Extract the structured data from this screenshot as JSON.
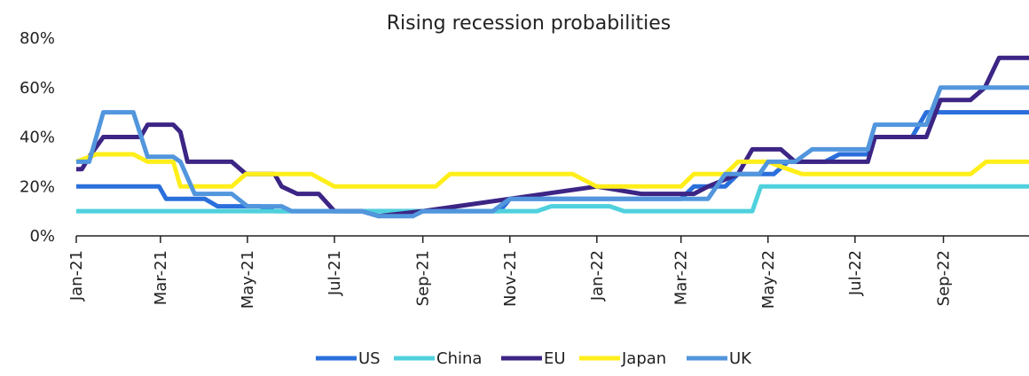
{
  "chart_data": {
    "type": "line",
    "title": "Rising recession probabilities",
    "xlabel": "",
    "ylabel": "",
    "x_ticks": [
      "Jan-21",
      "Mar-21",
      "May-21",
      "Jul-21",
      "Sep-21",
      "Nov-21",
      "Jan-22",
      "Mar-22",
      "May-22",
      "Jul-22",
      "Sep-22"
    ],
    "x_range": [
      "2021-01-01",
      "2022-10-31"
    ],
    "y_ticks": [
      "0%",
      "20%",
      "40%",
      "60%",
      "80%"
    ],
    "ylim": [
      0,
      80
    ],
    "grid": false,
    "legend_position": "bottom",
    "series": [
      {
        "name": "US",
        "color": "#2a6fdb",
        "points": [
          [
            "2021-01-01",
            20
          ],
          [
            "2021-02-28",
            20
          ],
          [
            "2021-03-05",
            15
          ],
          [
            "2021-04-01",
            15
          ],
          [
            "2021-04-10",
            12
          ],
          [
            "2021-05-10",
            12
          ],
          [
            "2021-05-20",
            10
          ],
          [
            "2021-06-01",
            10
          ],
          [
            "2021-10-01",
            10
          ],
          [
            "2021-10-25",
            10
          ],
          [
            "2021-11-01",
            15
          ],
          [
            "2022-03-01",
            15
          ],
          [
            "2022-03-10",
            20
          ],
          [
            "2022-04-01",
            20
          ],
          [
            "2022-04-10",
            25
          ],
          [
            "2022-05-05",
            25
          ],
          [
            "2022-05-15",
            30
          ],
          [
            "2022-06-10",
            30
          ],
          [
            "2022-06-20",
            33
          ],
          [
            "2022-07-10",
            33
          ],
          [
            "2022-07-15",
            40
          ],
          [
            "2022-08-10",
            40
          ],
          [
            "2022-08-20",
            50
          ],
          [
            "2022-10-31",
            50
          ]
        ]
      },
      {
        "name": "China",
        "color": "#4fd1dd",
        "points": [
          [
            "2021-01-01",
            10
          ],
          [
            "2021-11-20",
            10
          ],
          [
            "2021-11-30",
            12
          ],
          [
            "2022-01-10",
            12
          ],
          [
            "2022-01-20",
            10
          ],
          [
            "2022-04-20",
            10
          ],
          [
            "2022-04-26",
            20
          ],
          [
            "2022-10-31",
            20
          ]
        ]
      },
      {
        "name": "EU",
        "color": "#3c2585",
        "points": [
          [
            "2021-01-01",
            27
          ],
          [
            "2021-01-05",
            27
          ],
          [
            "2021-01-10",
            32
          ],
          [
            "2021-01-20",
            40
          ],
          [
            "2021-02-15",
            40
          ],
          [
            "2021-02-20",
            45
          ],
          [
            "2021-03-10",
            45
          ],
          [
            "2021-03-15",
            42
          ],
          [
            "2021-03-20",
            30
          ],
          [
            "2021-04-20",
            30
          ],
          [
            "2021-04-30",
            25
          ],
          [
            "2021-05-20",
            25
          ],
          [
            "2021-05-25",
            20
          ],
          [
            "2021-06-05",
            17
          ],
          [
            "2021-06-20",
            17
          ],
          [
            "2021-07-01",
            10
          ],
          [
            "2021-07-20",
            10
          ],
          [
            "2021-08-01",
            8
          ],
          [
            "2021-09-01",
            10
          ],
          [
            "2021-11-01",
            15
          ],
          [
            "2022-01-01",
            20
          ],
          [
            "2022-02-01",
            17
          ],
          [
            "2022-03-10",
            17
          ],
          [
            "2022-03-20",
            20
          ],
          [
            "2022-04-10",
            25
          ],
          [
            "2022-04-20",
            35
          ],
          [
            "2022-05-10",
            35
          ],
          [
            "2022-05-20",
            30
          ],
          [
            "2022-07-01",
            30
          ],
          [
            "2022-07-10",
            30
          ],
          [
            "2022-07-15",
            40
          ],
          [
            "2022-08-20",
            40
          ],
          [
            "2022-08-30",
            55
          ],
          [
            "2022-09-20",
            55
          ],
          [
            "2022-09-30",
            60
          ],
          [
            "2022-10-10",
            72
          ],
          [
            "2022-10-31",
            72
          ]
        ]
      },
      {
        "name": "Japan",
        "color": "#ffee1a",
        "points": [
          [
            "2021-01-01",
            30
          ],
          [
            "2021-01-15",
            33
          ],
          [
            "2021-02-10",
            33
          ],
          [
            "2021-02-20",
            30
          ],
          [
            "2021-03-10",
            30
          ],
          [
            "2021-03-15",
            20
          ],
          [
            "2021-04-20",
            20
          ],
          [
            "2021-04-30",
            25
          ],
          [
            "2021-06-15",
            25
          ],
          [
            "2021-07-01",
            20
          ],
          [
            "2021-09-10",
            20
          ],
          [
            "2021-09-20",
            25
          ],
          [
            "2021-12-15",
            25
          ],
          [
            "2022-01-01",
            20
          ],
          [
            "2022-02-15",
            20
          ],
          [
            "2022-03-01",
            20
          ],
          [
            "2022-03-10",
            25
          ],
          [
            "2022-04-01",
            25
          ],
          [
            "2022-04-10",
            30
          ],
          [
            "2022-05-01",
            30
          ],
          [
            "2022-05-10",
            28
          ],
          [
            "2022-05-25",
            25
          ],
          [
            "2022-09-20",
            25
          ],
          [
            "2022-10-01",
            30
          ],
          [
            "2022-10-31",
            30
          ]
        ]
      },
      {
        "name": "UK",
        "color": "#5296dd",
        "points": [
          [
            "2021-01-01",
            30
          ],
          [
            "2021-01-10",
            30
          ],
          [
            "2021-01-20",
            50
          ],
          [
            "2021-02-10",
            50
          ],
          [
            "2021-02-20",
            32
          ],
          [
            "2021-03-10",
            32
          ],
          [
            "2021-03-15",
            30
          ],
          [
            "2021-03-25",
            17
          ],
          [
            "2021-04-20",
            17
          ],
          [
            "2021-05-01",
            12
          ],
          [
            "2021-05-25",
            12
          ],
          [
            "2021-06-01",
            10
          ],
          [
            "2021-07-20",
            10
          ],
          [
            "2021-08-01",
            8
          ],
          [
            "2021-08-25",
            8
          ],
          [
            "2021-09-01",
            10
          ],
          [
            "2021-10-20",
            10
          ],
          [
            "2021-11-01",
            15
          ],
          [
            "2022-03-20",
            15
          ],
          [
            "2022-04-01",
            25
          ],
          [
            "2022-04-25",
            25
          ],
          [
            "2022-05-01",
            30
          ],
          [
            "2022-05-20",
            30
          ],
          [
            "2022-06-01",
            35
          ],
          [
            "2022-07-10",
            35
          ],
          [
            "2022-07-15",
            45
          ],
          [
            "2022-08-20",
            45
          ],
          [
            "2022-08-30",
            60
          ],
          [
            "2022-10-31",
            60
          ]
        ]
      }
    ]
  }
}
